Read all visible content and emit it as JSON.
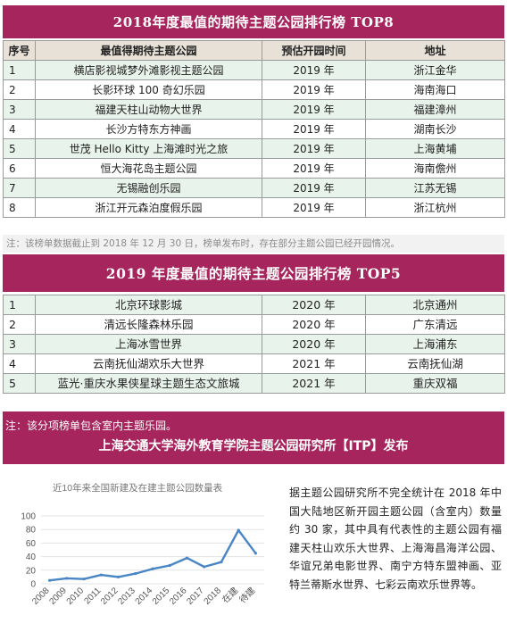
{
  "table_2018": {
    "title": "2018年度最值的期待主题公园排行榜 TOP8",
    "headers": [
      "序号",
      "最值得期待主题公园",
      "预估开园时间",
      "地址"
    ],
    "rows": [
      {
        "rank": "1",
        "name": "横店影视城梦外滩影视主题公园",
        "year": "2019 年",
        "location": "浙江金华"
      },
      {
        "rank": "2",
        "name": "长影环球 100 奇幻乐园",
        "year": "2019 年",
        "location": "海南海口"
      },
      {
        "rank": "3",
        "name": "福建天柱山动物大世界",
        "year": "2019 年",
        "location": "福建漳州"
      },
      {
        "rank": "4",
        "name": "长沙方特东方神画",
        "year": "2019 年",
        "location": "湖南长沙"
      },
      {
        "rank": "5",
        "name": "世茂 Hello Kitty 上海滩时光之旅",
        "year": "2019 年",
        "location": "上海黄埔"
      },
      {
        "rank": "6",
        "name": "恒大海花岛主题公园",
        "year": "2019 年",
        "location": "海南儋州"
      },
      {
        "rank": "7",
        "name": "无锡融创乐园",
        "year": "2019 年",
        "location": "江苏无锡"
      },
      {
        "rank": "8",
        "name": "浙江开元森泊度假乐园",
        "year": "2019 年",
        "location": "浙江杭州"
      }
    ],
    "note": "注：该榜单数据截止到 2018 年 12 月 30 日，榜单发布时，存在部分主题公园已经开园情况。"
  },
  "table_2019": {
    "title": "2019 年度最值的期待主题公园排行榜 TOP5",
    "rows": [
      {
        "rank": "1",
        "name": "北京环球影城",
        "year": "2020 年",
        "location": "北京通州"
      },
      {
        "rank": "2",
        "name": "清远长隆森林乐园",
        "year": "2020 年",
        "location": "广东清远"
      },
      {
        "rank": "3",
        "name": "上海冰雪世界",
        "year": "2020 年",
        "location": "上海浦东"
      },
      {
        "rank": "4",
        "name": "云南抚仙湖欢乐大世界",
        "year": "2021 年",
        "location": "云南抚仙湖"
      },
      {
        "rank": "5",
        "name": "蓝光·重庆水果侠星球主题生态文旅城",
        "year": "2021 年",
        "location": "重庆双福"
      }
    ],
    "note": "注：该分项榜单包含室内主题乐园。"
  },
  "publisher": "上海交通大学海外教育学院主题公园研究所【ITP】发布",
  "paragraph": "据主题公园研究所不完全统计在 2018 年中国大陆地区新开园主题公园（含室内）数量约 30 家，其中具有代表性的主题公园有福建天柱山欢乐大世界、上海海昌海洋公园、华谊兄弟电影世界、南宁方特东盟神画、亚特兰蒂斯水世界、七彩云南欢乐世界等。",
  "colors": {
    "banner": "#a6255c",
    "line": "#4a86c5",
    "odd_row": "#e8f3ec",
    "header_row": "#e7e1d7"
  },
  "chart_data": {
    "type": "line",
    "title": "近10年来全国新建及在建主题公园数量表",
    "categories": [
      "2008",
      "2009",
      "2010",
      "2011",
      "2012",
      "2013",
      "2014",
      "2015",
      "2016",
      "2017",
      "2018",
      "在建",
      "待建"
    ],
    "values": [
      5,
      8,
      7,
      13,
      10,
      15,
      22,
      27,
      38,
      25,
      32,
      79,
      45
    ],
    "ylim": [
      0,
      100
    ],
    "yticks": [
      "0",
      "20",
      "40",
      "60",
      "80",
      "100"
    ],
    "grid": true
  }
}
